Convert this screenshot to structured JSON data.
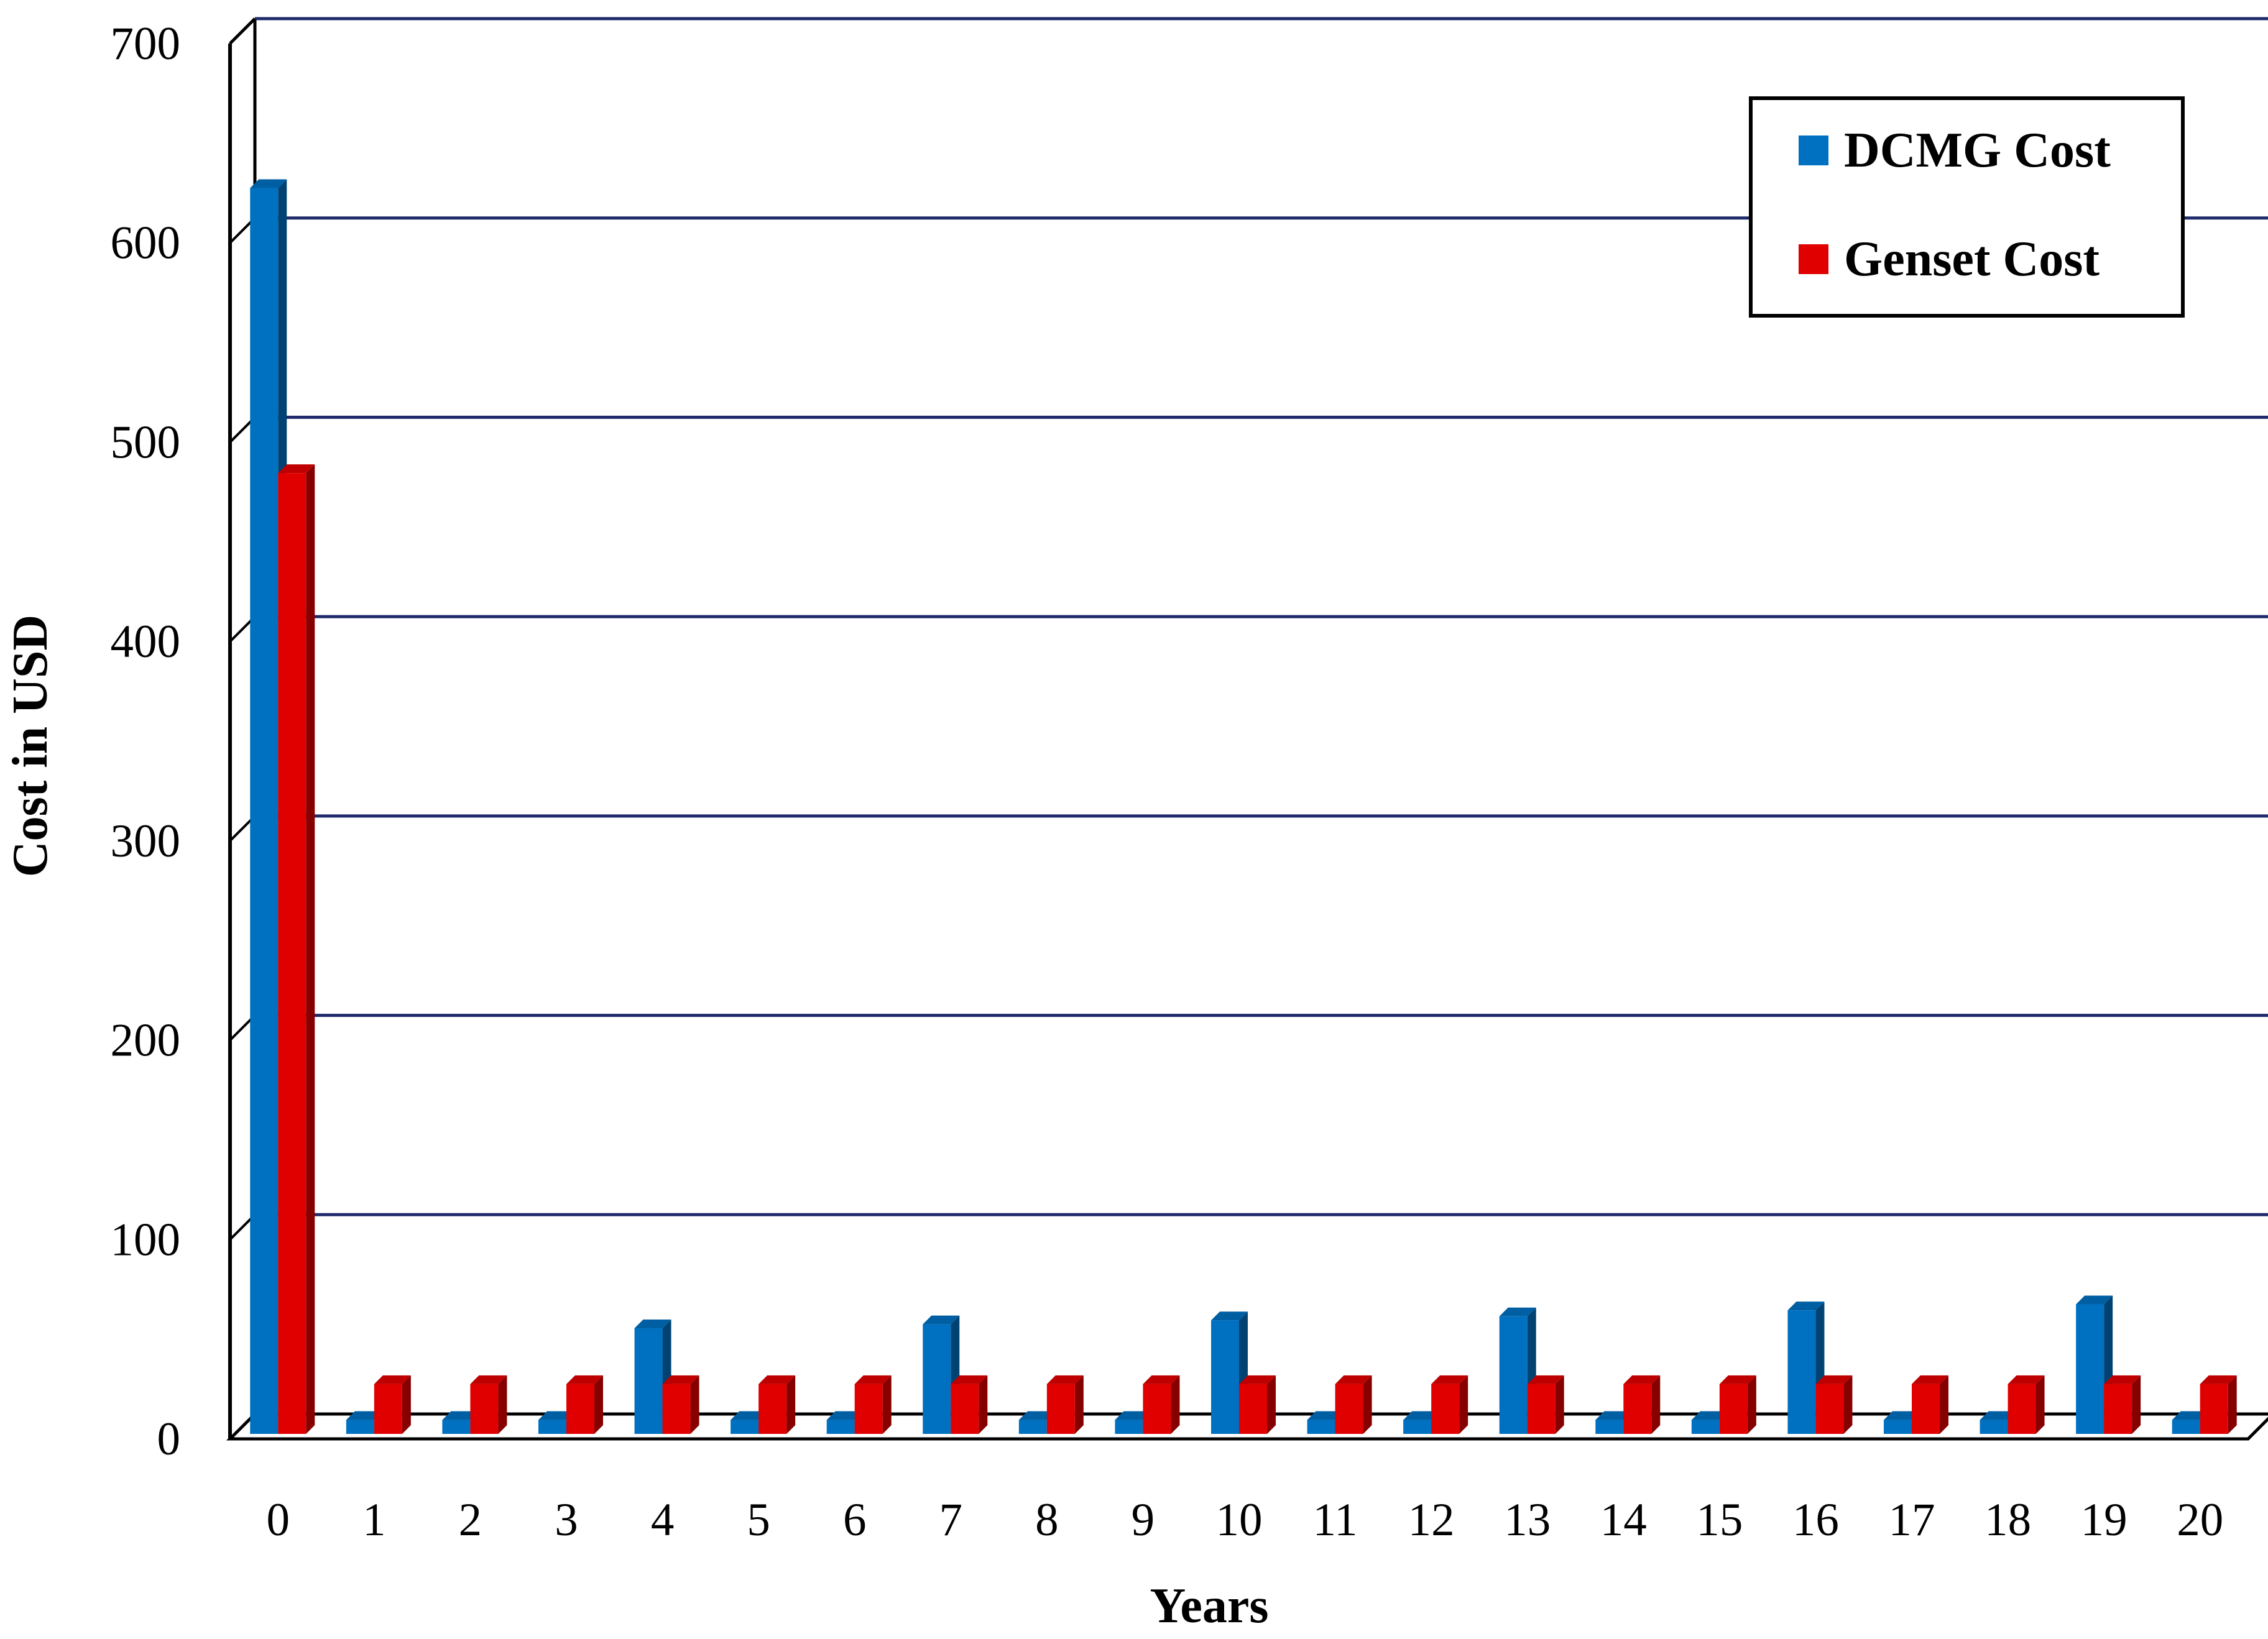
{
  "chart_data": {
    "type": "bar",
    "title": "",
    "xlabel": "Years",
    "ylabel": "Cost in USD",
    "categories": [
      "0",
      "1",
      "2",
      "3",
      "4",
      "5",
      "6",
      "7",
      "8",
      "9",
      "10",
      "11",
      "12",
      "13",
      "14",
      "15",
      "16",
      "17",
      "18",
      "19",
      "20"
    ],
    "ylim": [
      0,
      700
    ],
    "yticks": [
      0,
      100,
      200,
      300,
      400,
      500,
      600,
      700
    ],
    "grid": true,
    "legend_position": "top-right",
    "series": [
      {
        "name": "DCMG Cost",
        "color": "#0070C0",
        "values": [
          625,
          7,
          7,
          7,
          53,
          7,
          7,
          55,
          7,
          7,
          57,
          7,
          7,
          59,
          7,
          7,
          62,
          7,
          7,
          65,
          7
        ]
      },
      {
        "name": "Genset Cost",
        "color": "#E00000",
        "values": [
          482,
          25,
          25,
          25,
          25,
          25,
          25,
          25,
          25,
          25,
          25,
          25,
          25,
          25,
          25,
          25,
          25,
          25,
          25,
          25,
          25
        ]
      }
    ]
  }
}
